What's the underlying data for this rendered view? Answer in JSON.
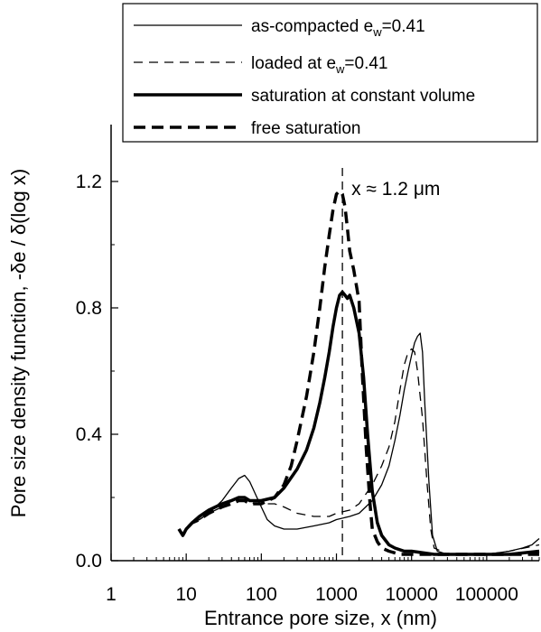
{
  "chart_data": {
    "type": "line",
    "xlabel": "Entrance pore size, x (nm)",
    "ylabel": "Pore size density function, -δe / δ(log x)",
    "xscale": "log",
    "xlim": [
      1,
      500000
    ],
    "ylim": [
      0,
      1.38
    ],
    "xticks": [
      "1",
      "10",
      "100",
      "1000",
      "10000",
      "100000"
    ],
    "yticks": [
      "0.0",
      "0.4",
      "0.8",
      "1.2"
    ],
    "grid": false,
    "legend_position": "top",
    "annotation": {
      "text": "x ≈ 1.2 μm",
      "x": 1200
    },
    "series": [
      {
        "name": "as-compacted e_w=0.41",
        "legend_main": "as-compacted e",
        "legend_sub": "w",
        "legend_tail": "=0.41",
        "style": "thin-solid",
        "x": [
          8,
          9,
          10,
          12,
          15,
          20,
          30,
          40,
          50,
          60,
          70,
          80,
          100,
          120,
          150,
          200,
          300,
          500,
          800,
          1000,
          1500,
          2000,
          3000,
          4000,
          5000,
          6000,
          7000,
          8000,
          9000,
          10000,
          11000,
          12000,
          13000,
          14000,
          15000,
          17000,
          19000,
          22000,
          30000,
          50000,
          100000,
          200000,
          300000,
          400000,
          500000
        ],
        "y": [
          0.1,
          0.08,
          0.1,
          0.12,
          0.13,
          0.15,
          0.19,
          0.23,
          0.26,
          0.27,
          0.25,
          0.22,
          0.17,
          0.13,
          0.11,
          0.1,
          0.1,
          0.11,
          0.12,
          0.13,
          0.14,
          0.15,
          0.19,
          0.24,
          0.3,
          0.38,
          0.46,
          0.54,
          0.6,
          0.65,
          0.69,
          0.71,
          0.72,
          0.66,
          0.5,
          0.25,
          0.08,
          0.03,
          0.02,
          0.02,
          0.02,
          0.03,
          0.04,
          0.05,
          0.07
        ]
      },
      {
        "name": "loaded at e_w=0.41",
        "legend_main": "loaded at e",
        "legend_sub": "w",
        "legend_tail": "=0.41",
        "style": "thin-dashed",
        "x": [
          8,
          9,
          10,
          12,
          15,
          20,
          30,
          40,
          50,
          60,
          70,
          80,
          100,
          150,
          200,
          300,
          500,
          800,
          1000,
          1500,
          2000,
          3000,
          4000,
          5000,
          6000,
          7000,
          8000,
          9000,
          10000,
          11000,
          12000,
          14000,
          16000,
          18000,
          20000,
          25000,
          30000,
          50000,
          100000,
          200000,
          500000
        ],
        "y": [
          0.1,
          0.08,
          0.1,
          0.12,
          0.13,
          0.15,
          0.17,
          0.19,
          0.2,
          0.2,
          0.19,
          0.18,
          0.18,
          0.18,
          0.17,
          0.15,
          0.14,
          0.14,
          0.15,
          0.16,
          0.18,
          0.24,
          0.3,
          0.36,
          0.44,
          0.54,
          0.62,
          0.66,
          0.67,
          0.66,
          0.6,
          0.45,
          0.25,
          0.1,
          0.04,
          0.03,
          0.02,
          0.02,
          0.02,
          0.03,
          0.05
        ]
      },
      {
        "name": "saturation at constant volume",
        "style": "thick-solid",
        "x": [
          8,
          9,
          10,
          12,
          15,
          20,
          30,
          40,
          50,
          60,
          70,
          80,
          100,
          150,
          200,
          300,
          400,
          500,
          600,
          700,
          800,
          900,
          1000,
          1100,
          1200,
          1300,
          1400,
          1500,
          1700,
          2000,
          2300,
          2600,
          3000,
          3500,
          4000,
          5000,
          6000,
          8000,
          10000,
          20000,
          50000,
          100000,
          200000,
          500000
        ],
        "y": [
          0.1,
          0.08,
          0.1,
          0.12,
          0.14,
          0.16,
          0.18,
          0.19,
          0.2,
          0.2,
          0.19,
          0.19,
          0.19,
          0.2,
          0.23,
          0.29,
          0.35,
          0.42,
          0.5,
          0.58,
          0.66,
          0.74,
          0.8,
          0.84,
          0.85,
          0.84,
          0.83,
          0.84,
          0.8,
          0.72,
          0.58,
          0.4,
          0.22,
          0.12,
          0.08,
          0.05,
          0.04,
          0.03,
          0.03,
          0.02,
          0.02,
          0.02,
          0.02,
          0.03
        ]
      },
      {
        "name": "free saturation",
        "style": "thick-dashed",
        "x": [
          8,
          9,
          10,
          12,
          15,
          20,
          30,
          40,
          50,
          60,
          70,
          80,
          100,
          150,
          200,
          250,
          300,
          400,
          500,
          600,
          700,
          800,
          900,
          1000,
          1100,
          1200,
          1300,
          1400,
          1500,
          1700,
          2000,
          2200,
          2500,
          2800,
          3000,
          3500,
          4000,
          5000,
          7000,
          10000,
          20000,
          100000,
          500000
        ],
        "y": [
          0.1,
          0.08,
          0.1,
          0.12,
          0.13,
          0.15,
          0.17,
          0.18,
          0.19,
          0.19,
          0.18,
          0.18,
          0.18,
          0.2,
          0.24,
          0.3,
          0.38,
          0.52,
          0.66,
          0.8,
          0.93,
          1.03,
          1.11,
          1.16,
          1.17,
          1.16,
          1.12,
          1.05,
          0.98,
          0.92,
          0.82,
          0.6,
          0.35,
          0.18,
          0.1,
          0.06,
          0.04,
          0.03,
          0.02,
          0.02,
          0.02,
          0.02,
          0.02
        ]
      }
    ]
  }
}
